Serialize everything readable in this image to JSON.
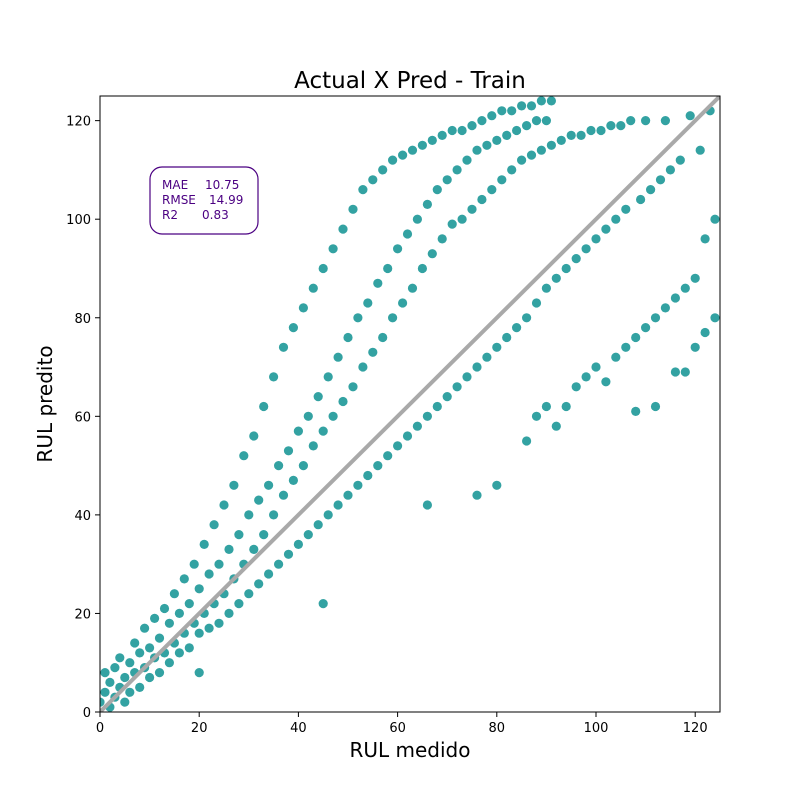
{
  "chart_data": {
    "type": "scatter",
    "title": "Actual X Pred - Train",
    "xlabel": "RUL medido",
    "ylabel": "RUL predito",
    "xlim": [
      0,
      125
    ],
    "ylim": [
      0,
      125
    ],
    "xticks": [
      0,
      20,
      40,
      60,
      80,
      100,
      120
    ],
    "yticks": [
      0,
      20,
      40,
      60,
      80,
      100,
      120
    ],
    "grid": false,
    "point_color": "#008b8b",
    "point_alpha": 0.8,
    "reference_line": {
      "from": [
        0,
        0
      ],
      "to": [
        125,
        125
      ],
      "color": "#a9a9a9"
    },
    "metrics_box": {
      "rows": [
        {
          "label": "MAE",
          "value": "10.75"
        },
        {
          "label": "RMSE",
          "value": "14.99"
        },
        {
          "label": "R2",
          "value": "0.83"
        }
      ],
      "text_color": "#4b0082",
      "border_color": "#4b0082"
    },
    "series": [
      {
        "points": [
          [
            0,
            2
          ],
          [
            1,
            4
          ],
          [
            1,
            8
          ],
          [
            2,
            1
          ],
          [
            2,
            6
          ],
          [
            3,
            3
          ],
          [
            3,
            9
          ],
          [
            4,
            5
          ],
          [
            4,
            11
          ],
          [
            5,
            7
          ],
          [
            5,
            2
          ],
          [
            6,
            10
          ],
          [
            6,
            4
          ],
          [
            7,
            8
          ],
          [
            7,
            14
          ],
          [
            8,
            5
          ],
          [
            8,
            12
          ],
          [
            9,
            9
          ],
          [
            9,
            17
          ],
          [
            10,
            7
          ],
          [
            10,
            13
          ],
          [
            11,
            11
          ],
          [
            11,
            19
          ],
          [
            12,
            8
          ],
          [
            12,
            15
          ],
          [
            13,
            12
          ],
          [
            13,
            21
          ],
          [
            14,
            10
          ],
          [
            14,
            18
          ],
          [
            15,
            14
          ],
          [
            15,
            24
          ],
          [
            16,
            12
          ],
          [
            16,
            20
          ],
          [
            17,
            16
          ],
          [
            17,
            27
          ],
          [
            18,
            13
          ],
          [
            18,
            22
          ],
          [
            19,
            18
          ],
          [
            19,
            30
          ],
          [
            20,
            8
          ],
          [
            20,
            16
          ],
          [
            20,
            25
          ],
          [
            21,
            20
          ],
          [
            21,
            34
          ],
          [
            22,
            17
          ],
          [
            22,
            28
          ],
          [
            23,
            22
          ],
          [
            23,
            38
          ],
          [
            24,
            18
          ],
          [
            24,
            30
          ],
          [
            25,
            24
          ],
          [
            25,
            42
          ],
          [
            26,
            20
          ],
          [
            26,
            33
          ],
          [
            27,
            27
          ],
          [
            27,
            46
          ],
          [
            28,
            22
          ],
          [
            28,
            36
          ],
          [
            29,
            30
          ],
          [
            29,
            52
          ],
          [
            30,
            24
          ],
          [
            30,
            40
          ],
          [
            31,
            33
          ],
          [
            31,
            56
          ],
          [
            32,
            26
          ],
          [
            32,
            43
          ],
          [
            33,
            36
          ],
          [
            33,
            62
          ],
          [
            34,
            28
          ],
          [
            34,
            46
          ],
          [
            35,
            40
          ],
          [
            35,
            68
          ],
          [
            36,
            30
          ],
          [
            36,
            50
          ],
          [
            37,
            44
          ],
          [
            37,
            74
          ],
          [
            38,
            32
          ],
          [
            38,
            53
          ],
          [
            39,
            47
          ],
          [
            39,
            78
          ],
          [
            40,
            34
          ],
          [
            40,
            57
          ],
          [
            41,
            50
          ],
          [
            41,
            82
          ],
          [
            42,
            36
          ],
          [
            42,
            60
          ],
          [
            43,
            54
          ],
          [
            43,
            86
          ],
          [
            44,
            38
          ],
          [
            44,
            64
          ],
          [
            45,
            22
          ],
          [
            45,
            57
          ],
          [
            45,
            90
          ],
          [
            46,
            40
          ],
          [
            46,
            68
          ],
          [
            47,
            60
          ],
          [
            47,
            94
          ],
          [
            48,
            42
          ],
          [
            48,
            72
          ],
          [
            49,
            63
          ],
          [
            49,
            98
          ],
          [
            50,
            44
          ],
          [
            50,
            76
          ],
          [
            51,
            66
          ],
          [
            51,
            102
          ],
          [
            52,
            46
          ],
          [
            52,
            80
          ],
          [
            53,
            70
          ],
          [
            53,
            106
          ],
          [
            54,
            48
          ],
          [
            54,
            83
          ],
          [
            55,
            73
          ],
          [
            55,
            108
          ],
          [
            56,
            50
          ],
          [
            56,
            87
          ],
          [
            57,
            76
          ],
          [
            57,
            110
          ],
          [
            58,
            52
          ],
          [
            58,
            90
          ],
          [
            59,
            80
          ],
          [
            59,
            112
          ],
          [
            60,
            54
          ],
          [
            60,
            94
          ],
          [
            61,
            83
          ],
          [
            61,
            113
          ],
          [
            62,
            56
          ],
          [
            62,
            97
          ],
          [
            63,
            86
          ],
          [
            63,
            114
          ],
          [
            64,
            58
          ],
          [
            64,
            100
          ],
          [
            65,
            90
          ],
          [
            65,
            115
          ],
          [
            66,
            42
          ],
          [
            66,
            60
          ],
          [
            66,
            103
          ],
          [
            67,
            93
          ],
          [
            67,
            116
          ],
          [
            68,
            62
          ],
          [
            68,
            106
          ],
          [
            69,
            96
          ],
          [
            69,
            117
          ],
          [
            70,
            64
          ],
          [
            70,
            108
          ],
          [
            71,
            99
          ],
          [
            71,
            118
          ],
          [
            72,
            66
          ],
          [
            72,
            110
          ],
          [
            73,
            100
          ],
          [
            73,
            118
          ],
          [
            74,
            68
          ],
          [
            74,
            112
          ],
          [
            75,
            102
          ],
          [
            75,
            119
          ],
          [
            76,
            44
          ],
          [
            76,
            70
          ],
          [
            76,
            114
          ],
          [
            77,
            104
          ],
          [
            77,
            120
          ],
          [
            78,
            72
          ],
          [
            78,
            115
          ],
          [
            79,
            106
          ],
          [
            79,
            121
          ],
          [
            80,
            46
          ],
          [
            80,
            74
          ],
          [
            80,
            116
          ],
          [
            81,
            108
          ],
          [
            81,
            122
          ],
          [
            82,
            76
          ],
          [
            82,
            117
          ],
          [
            83,
            110
          ],
          [
            83,
            122
          ],
          [
            84,
            78
          ],
          [
            84,
            118
          ],
          [
            85,
            112
          ],
          [
            85,
            123
          ],
          [
            86,
            55
          ],
          [
            86,
            80
          ],
          [
            86,
            119
          ],
          [
            87,
            113
          ],
          [
            87,
            123
          ],
          [
            88,
            60
          ],
          [
            88,
            83
          ],
          [
            88,
            120
          ],
          [
            89,
            114
          ],
          [
            89,
            124
          ],
          [
            90,
            62
          ],
          [
            90,
            86
          ],
          [
            90,
            120
          ],
          [
            91,
            115
          ],
          [
            91,
            124
          ],
          [
            92,
            58
          ],
          [
            92,
            88
          ],
          [
            93,
            116
          ],
          [
            94,
            62
          ],
          [
            94,
            90
          ],
          [
            95,
            117
          ],
          [
            96,
            66
          ],
          [
            96,
            92
          ],
          [
            97,
            117
          ],
          [
            98,
            68
          ],
          [
            98,
            94
          ],
          [
            99,
            118
          ],
          [
            100,
            70
          ],
          [
            100,
            96
          ],
          [
            101,
            118
          ],
          [
            102,
            67
          ],
          [
            102,
            98
          ],
          [
            103,
            119
          ],
          [
            104,
            72
          ],
          [
            104,
            100
          ],
          [
            105,
            119
          ],
          [
            106,
            74
          ],
          [
            106,
            102
          ],
          [
            107,
            120
          ],
          [
            108,
            61
          ],
          [
            108,
            76
          ],
          [
            109,
            104
          ],
          [
            110,
            78
          ],
          [
            110,
            120
          ],
          [
            111,
            106
          ],
          [
            112,
            62
          ],
          [
            112,
            80
          ],
          [
            113,
            108
          ],
          [
            114,
            82
          ],
          [
            114,
            120
          ],
          [
            115,
            110
          ],
          [
            116,
            69
          ],
          [
            116,
            84
          ],
          [
            117,
            112
          ],
          [
            118,
            69
          ],
          [
            118,
            86
          ],
          [
            119,
            121
          ],
          [
            120,
            74
          ],
          [
            120,
            88
          ],
          [
            121,
            114
          ],
          [
            122,
            77
          ],
          [
            122,
            96
          ],
          [
            123,
            122
          ],
          [
            124,
            80
          ],
          [
            124,
            100
          ]
        ]
      }
    ]
  }
}
